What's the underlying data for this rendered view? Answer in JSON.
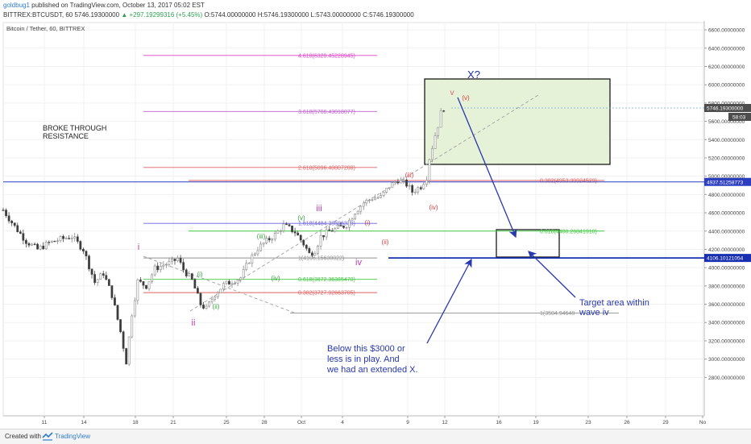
{
  "header": {
    "username": "goldbug1",
    "published": "published on TradingView.com, October 13, 2017 05:02 EST",
    "quote": "BITTREX:BTCUSDT, 60  5746.19300000",
    "change": "▲ +297.19299316 (+5.45%)",
    "ohlc": "O:5744.00000000  H:5746.19300000  L:5743.00000000  C:5746.19300000"
  },
  "footer": {
    "created": "Created with",
    "brand": "TradingView"
  },
  "chart_data": {
    "type": "candlestick",
    "title": "Bitcoin / Tether, 60, BITTREX",
    "x_ticks": [
      "11",
      "14",
      "18",
      "21",
      "25",
      "28",
      "Oct",
      "4",
      "9",
      "12",
      "16",
      "19",
      "23",
      "26",
      "29",
      "No"
    ],
    "y_ticks": [
      "2800.00000000",
      "3000.00000000",
      "3200.00000000",
      "3400.00000000",
      "3600.00000000",
      "3800.00000000",
      "4000.00000000",
      "4200.00000000",
      "4400.00000000",
      "4600.00000000",
      "4800.00000000",
      "5000.00000000",
      "5200.00000000",
      "5400.00000000",
      "5600.00000000",
      "5800.00000000",
      "6000.00000000",
      "6200.00000000",
      "6400.00000000",
      "6600.00000000"
    ],
    "ylim": [
      2380,
      6680
    ],
    "price_path": [
      [
        0,
        4630
      ],
      [
        4,
        4450
      ],
      [
        8,
        4290
      ],
      [
        12,
        4200
      ],
      [
        16,
        4270
      ],
      [
        20,
        4310
      ],
      [
        24,
        4340
      ],
      [
        28,
        4200
      ],
      [
        32,
        3840
      ],
      [
        35,
        3940
      ],
      [
        38,
        3700
      ],
      [
        41,
        3300
      ],
      [
        43,
        2970
      ],
      [
        45,
        3500
      ],
      [
        47,
        3850
      ],
      [
        50,
        3800
      ],
      [
        53,
        3990
      ],
      [
        56,
        4030
      ],
      [
        59,
        4060
      ],
      [
        61,
        4100
      ],
      [
        63,
        3980
      ],
      [
        66,
        3860
      ],
      [
        69,
        3600
      ],
      [
        71,
        3550
      ],
      [
        74,
        3710
      ],
      [
        77,
        3810
      ],
      [
        80,
        3850
      ],
      [
        83,
        3890
      ],
      [
        86,
        4080
      ],
      [
        89,
        4210
      ],
      [
        92,
        4290
      ],
      [
        95,
        4360
      ],
      [
        98,
        4460
      ],
      [
        100,
        4430
      ],
      [
        102,
        4390
      ],
      [
        105,
        4260
      ],
      [
        107,
        4150
      ],
      [
        109,
        4190
      ],
      [
        111,
        4340
      ],
      [
        114,
        4400
      ],
      [
        117,
        4430
      ],
      [
        120,
        4470
      ],
      [
        123,
        4610
      ],
      [
        126,
        4710
      ],
      [
        129,
        4760
      ],
      [
        132,
        4770
      ],
      [
        135,
        4890
      ],
      [
        138,
        4960
      ],
      [
        141,
        4910
      ],
      [
        143,
        4830
      ],
      [
        146,
        4890
      ],
      [
        148,
        4990
      ],
      [
        149,
        5200
      ],
      [
        150,
        5320
      ],
      [
        151,
        5450
      ],
      [
        152,
        5560
      ],
      [
        153,
        5690
      ],
      [
        154,
        5746
      ]
    ],
    "levels": [
      {
        "label": "4.618(6320.45228945)",
        "value": 6320,
        "color": "#e040c8"
      },
      {
        "label": "3.618(5708.43018077)",
        "value": 5708,
        "color": "#c060d0"
      },
      {
        "label": "2.618(5096.40807208)",
        "value": 5096,
        "color": "#e06060"
      },
      {
        "label": "0.382(4953.39924529)",
        "value": 4953,
        "color": "#e06060"
      },
      {
        "label": "1.618(4484.38596339)",
        "value": 4484,
        "color": "#6a60e0"
      },
      {
        "label": "0.618(4400.26841910)",
        "value": 4400,
        "color": "#40c840"
      },
      {
        "label": "1(4106.15630022)",
        "value": 4106,
        "color": "#909090"
      },
      {
        "label": "0.618(3872.36385470)",
        "value": 3872,
        "color": "#40c840"
      },
      {
        "label": "0.382(3727.92663705)",
        "value": 3727,
        "color": "#e06060"
      },
      {
        "label": "1(3504.94648",
        "value": 3504,
        "color": "#909090"
      }
    ],
    "horizontal_lines": [
      {
        "value": 4937.51258773,
        "label": "4937.51258773",
        "color": "#2c3ec0"
      },
      {
        "value": 4106.10121054,
        "label": "4106.10121054",
        "color": "#1830b0"
      }
    ],
    "last_price": {
      "label": "5746.19300000",
      "sub": "58:03"
    },
    "wave_labels": [
      {
        "text": "i",
        "color": "#c03cb4"
      },
      {
        "text": "ii",
        "color": "#c03cb4"
      },
      {
        "text": "iii",
        "color": "#c03cb4"
      },
      {
        "text": "iv",
        "color": "#c03cb4"
      },
      {
        "text": "v",
        "color": "#e06070"
      },
      {
        "text": "(v)",
        "color": "#d04040"
      },
      {
        "text": "(iii)",
        "color": "#d04040"
      },
      {
        "text": "(iv)",
        "color": "#d04040"
      },
      {
        "text": "(i)",
        "color": "#d04040"
      },
      {
        "text": "(ii)",
        "color": "#d04040"
      },
      {
        "text": "(i)",
        "color": "#3aa03a"
      },
      {
        "text": "(ii)",
        "color": "#3aa03a"
      },
      {
        "text": "(iii)",
        "color": "#3aa03a"
      },
      {
        "text": "(iv)",
        "color": "#3aa03a"
      },
      {
        "text": "(v)",
        "color": "#3aa03a"
      },
      {
        "text": "X?",
        "color": "#2030b0"
      }
    ],
    "annotations": {
      "resistance": [
        "BROKE THROUGH",
        "RESISTANCE"
      ],
      "below": [
        "Below this $3000 or",
        "less is in play. And",
        "we had an extended X."
      ],
      "target": [
        "Target area within",
        "wave iv"
      ]
    }
  }
}
